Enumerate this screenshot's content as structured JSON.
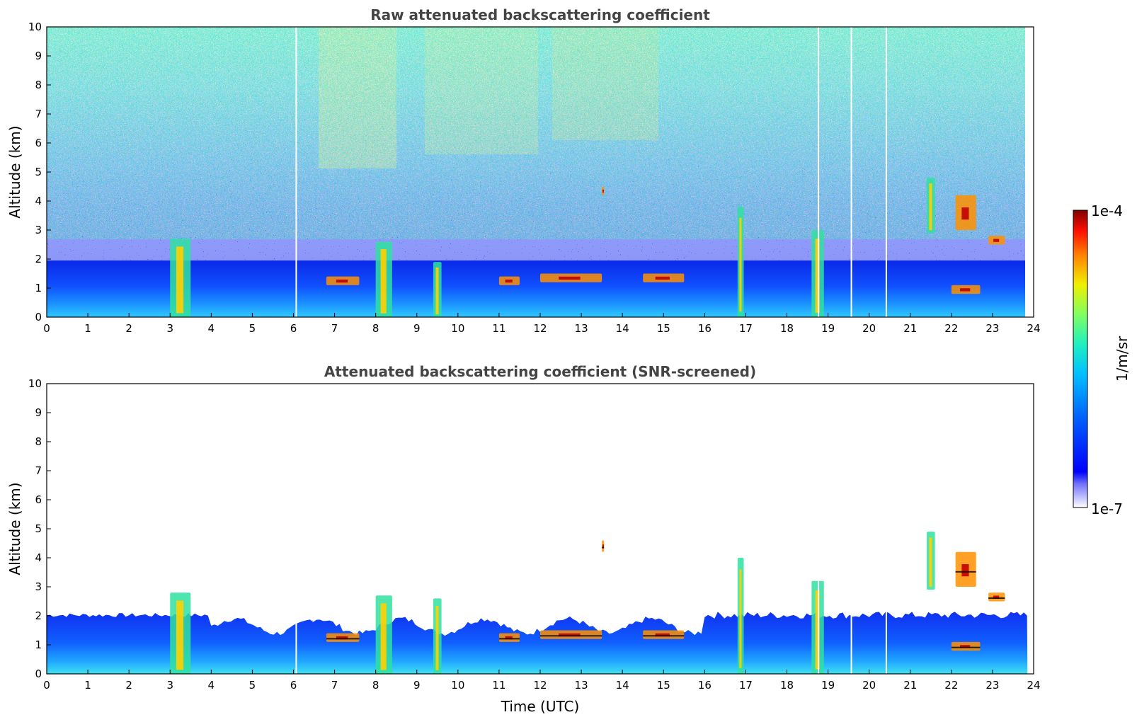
{
  "chart_data": [
    {
      "type": "heatmap",
      "title": "Raw attenuated backscattering coefficient",
      "xlabel": "",
      "ylabel": "Altitude (km)",
      "xlim": [
        0,
        24
      ],
      "ylim": [
        0,
        10
      ],
      "xticks": [
        "0",
        "1",
        "2",
        "3",
        "4",
        "5",
        "6",
        "7",
        "8",
        "9",
        "10",
        "11",
        "12",
        "13",
        "14",
        "15",
        "16",
        "17",
        "18",
        "19",
        "20",
        "21",
        "22",
        "23",
        "24"
      ],
      "yticks": [
        "0",
        "1",
        "2",
        "3",
        "4",
        "5",
        "6",
        "7",
        "8",
        "9",
        "10"
      ],
      "data_end_time": 23.85,
      "boundary_layer_top_km": 2.0,
      "noise_screened": false,
      "cloud_features": [
        {
          "t_start": 3.0,
          "t_end": 3.5,
          "alt_bottom": 0.0,
          "alt_top": 2.7
        },
        {
          "t_start": 6.8,
          "t_end": 7.6,
          "alt_bottom": 1.1,
          "alt_top": 1.4
        },
        {
          "t_start": 8.0,
          "t_end": 8.4,
          "alt_bottom": 0.0,
          "alt_top": 2.6
        },
        {
          "t_start": 9.4,
          "t_end": 9.6,
          "alt_bottom": 0.0,
          "alt_top": 1.9
        },
        {
          "t_start": 11.0,
          "t_end": 11.5,
          "alt_bottom": 1.1,
          "alt_top": 1.4
        },
        {
          "t_start": 12.0,
          "t_end": 13.5,
          "alt_bottom": 1.2,
          "alt_top": 1.5
        },
        {
          "t_start": 13.5,
          "t_end": 13.55,
          "alt_bottom": 4.2,
          "alt_top": 4.5
        },
        {
          "t_start": 14.5,
          "t_end": 15.5,
          "alt_bottom": 1.2,
          "alt_top": 1.5
        },
        {
          "t_start": 16.8,
          "t_end": 16.95,
          "alt_bottom": 0.0,
          "alt_top": 3.8
        },
        {
          "t_start": 18.6,
          "t_end": 18.9,
          "alt_bottom": 0.0,
          "alt_top": 3.0
        },
        {
          "t_start": 21.4,
          "t_end": 21.6,
          "alt_bottom": 2.9,
          "alt_top": 4.8
        },
        {
          "t_start": 22.1,
          "t_end": 22.6,
          "alt_bottom": 3.0,
          "alt_top": 4.2
        },
        {
          "t_start": 22.0,
          "t_end": 22.7,
          "alt_bottom": 0.8,
          "alt_top": 1.1
        },
        {
          "t_start": 22.9,
          "t_end": 23.3,
          "alt_bottom": 2.5,
          "alt_top": 2.8
        }
      ]
    },
    {
      "type": "heatmap",
      "title": "Attenuated backscattering coefficient (SNR-screened)",
      "xlabel": "Time (UTC)",
      "ylabel": "Altitude (km)",
      "xlim": [
        0,
        24
      ],
      "ylim": [
        0,
        10
      ],
      "xticks": [
        "0",
        "1",
        "2",
        "3",
        "4",
        "5",
        "6",
        "7",
        "8",
        "9",
        "10",
        "11",
        "12",
        "13",
        "14",
        "15",
        "16",
        "17",
        "18",
        "19",
        "20",
        "21",
        "22",
        "23",
        "24"
      ],
      "yticks": [
        "0",
        "1",
        "2",
        "3",
        "4",
        "5",
        "6",
        "7",
        "8",
        "9",
        "10"
      ],
      "data_end_time": 23.85,
      "boundary_layer_top_km": 2.0,
      "noise_screened": true,
      "cloud_features": [
        {
          "t_start": 3.0,
          "t_end": 3.5,
          "alt_bottom": 0.0,
          "alt_top": 2.8
        },
        {
          "t_start": 6.8,
          "t_end": 7.6,
          "alt_bottom": 1.1,
          "alt_top": 1.4
        },
        {
          "t_start": 8.0,
          "t_end": 8.4,
          "alt_bottom": 0.0,
          "alt_top": 2.7
        },
        {
          "t_start": 9.4,
          "t_end": 9.6,
          "alt_bottom": 0.0,
          "alt_top": 2.6
        },
        {
          "t_start": 11.0,
          "t_end": 11.5,
          "alt_bottom": 1.1,
          "alt_top": 1.4
        },
        {
          "t_start": 12.0,
          "t_end": 13.5,
          "alt_bottom": 1.2,
          "alt_top": 1.5
        },
        {
          "t_start": 13.5,
          "t_end": 13.55,
          "alt_bottom": 4.2,
          "alt_top": 4.6
        },
        {
          "t_start": 14.5,
          "t_end": 15.5,
          "alt_bottom": 1.2,
          "alt_top": 1.5
        },
        {
          "t_start": 16.8,
          "t_end": 16.95,
          "alt_bottom": 0.0,
          "alt_top": 4.0
        },
        {
          "t_start": 18.6,
          "t_end": 18.9,
          "alt_bottom": 0.0,
          "alt_top": 3.2
        },
        {
          "t_start": 21.4,
          "t_end": 21.6,
          "alt_bottom": 2.9,
          "alt_top": 4.9
        },
        {
          "t_start": 22.1,
          "t_end": 22.6,
          "alt_bottom": 3.0,
          "alt_top": 4.2
        },
        {
          "t_start": 22.0,
          "t_end": 22.7,
          "alt_bottom": 0.8,
          "alt_top": 1.1
        },
        {
          "t_start": 22.9,
          "t_end": 23.3,
          "alt_bottom": 2.5,
          "alt_top": 2.8
        }
      ]
    }
  ],
  "colorbar": {
    "label": "1/m/sr",
    "max_label": "1e-4",
    "min_label": "1e-7",
    "colormap": "jet",
    "scale": "log",
    "colors": [
      "#ffffff",
      "#d0d0ff",
      "#0000ff",
      "#0080ff",
      "#00e0e0",
      "#40ff90",
      "#e0ff20",
      "#ffb000",
      "#ff3000",
      "#800000"
    ]
  }
}
